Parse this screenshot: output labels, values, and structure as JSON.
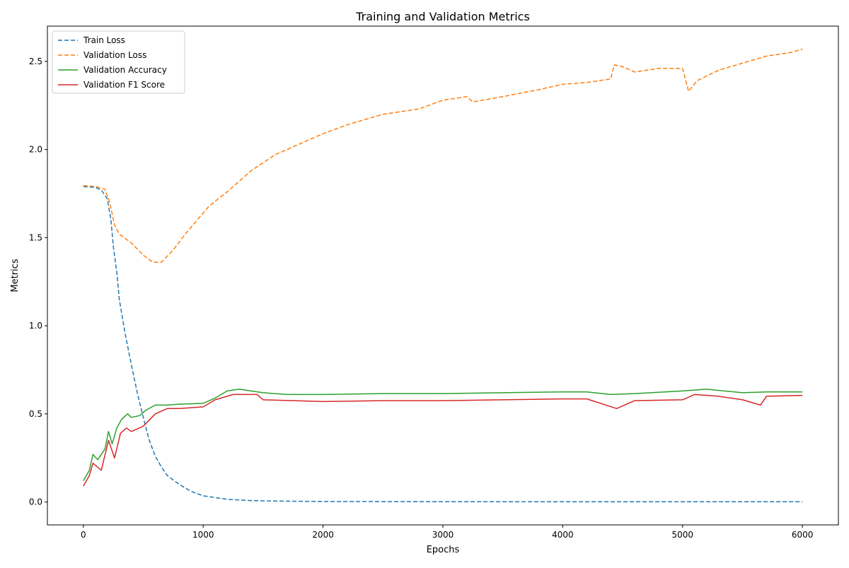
{
  "chart_data": {
    "type": "line",
    "title": "Training and Validation Metrics",
    "xlabel": "Epochs",
    "ylabel": "Metrics",
    "xlim": [
      -300,
      6300
    ],
    "ylim": [
      -0.13,
      2.7
    ],
    "x_ticks": [
      0,
      1000,
      2000,
      3000,
      4000,
      5000,
      6000
    ],
    "y_ticks": [
      0.0,
      0.5,
      1.0,
      1.5,
      2.0,
      2.5
    ],
    "x_tick_labels": [
      "0",
      "1000",
      "2000",
      "3000",
      "4000",
      "5000",
      "6000"
    ],
    "y_tick_labels": [
      "0.0",
      "0.5",
      "1.0",
      "1.5",
      "2.0",
      "2.5"
    ],
    "grid": false,
    "legend_position": "upper-left",
    "series": [
      {
        "name": "Train Loss",
        "color": "#1f77b4",
        "line_style": "dashed",
        "points": [
          [
            0,
            1.79
          ],
          [
            100,
            1.785
          ],
          [
            150,
            1.77
          ],
          [
            200,
            1.72
          ],
          [
            230,
            1.6
          ],
          [
            250,
            1.45
          ],
          [
            280,
            1.3
          ],
          [
            300,
            1.15
          ],
          [
            350,
            0.95
          ],
          [
            400,
            0.78
          ],
          [
            450,
            0.62
          ],
          [
            500,
            0.48
          ],
          [
            550,
            0.35
          ],
          [
            600,
            0.26
          ],
          [
            650,
            0.2
          ],
          [
            700,
            0.15
          ],
          [
            800,
            0.1
          ],
          [
            900,
            0.06
          ],
          [
            1000,
            0.035
          ],
          [
            1200,
            0.015
          ],
          [
            1400,
            0.008
          ],
          [
            1600,
            0.005
          ],
          [
            2000,
            0.003
          ],
          [
            3000,
            0.002
          ],
          [
            4000,
            0.001
          ],
          [
            5000,
            0.001
          ],
          [
            6000,
            0.001
          ]
        ]
      },
      {
        "name": "Validation Loss",
        "color": "#ff7f0e",
        "line_style": "dashed",
        "points": [
          [
            0,
            1.795
          ],
          [
            100,
            1.79
          ],
          [
            180,
            1.775
          ],
          [
            220,
            1.7
          ],
          [
            260,
            1.57
          ],
          [
            300,
            1.52
          ],
          [
            400,
            1.47
          ],
          [
            500,
            1.4
          ],
          [
            580,
            1.36
          ],
          [
            650,
            1.36
          ],
          [
            750,
            1.43
          ],
          [
            850,
            1.52
          ],
          [
            950,
            1.6
          ],
          [
            1050,
            1.68
          ],
          [
            1200,
            1.76
          ],
          [
            1400,
            1.88
          ],
          [
            1600,
            1.97
          ],
          [
            1800,
            2.03
          ],
          [
            2000,
            2.09
          ],
          [
            2200,
            2.14
          ],
          [
            2500,
            2.2
          ],
          [
            2800,
            2.23
          ],
          [
            3000,
            2.28
          ],
          [
            3200,
            2.3
          ],
          [
            3250,
            2.27
          ],
          [
            3500,
            2.3
          ],
          [
            3800,
            2.34
          ],
          [
            4000,
            2.37
          ],
          [
            4200,
            2.38
          ],
          [
            4400,
            2.4
          ],
          [
            4430,
            2.48
          ],
          [
            4500,
            2.47
          ],
          [
            4600,
            2.44
          ],
          [
            4800,
            2.46
          ],
          [
            5000,
            2.46
          ],
          [
            5050,
            2.33
          ],
          [
            5120,
            2.39
          ],
          [
            5300,
            2.45
          ],
          [
            5500,
            2.49
          ],
          [
            5700,
            2.53
          ],
          [
            5900,
            2.55
          ],
          [
            6000,
            2.57
          ]
        ]
      },
      {
        "name": "Validation Accuracy",
        "color": "#2ca02c",
        "line_style": "solid",
        "points": [
          [
            0,
            0.12
          ],
          [
            50,
            0.18
          ],
          [
            80,
            0.27
          ],
          [
            120,
            0.24
          ],
          [
            180,
            0.3
          ],
          [
            210,
            0.4
          ],
          [
            240,
            0.33
          ],
          [
            280,
            0.42
          ],
          [
            320,
            0.47
          ],
          [
            370,
            0.5
          ],
          [
            400,
            0.48
          ],
          [
            470,
            0.49
          ],
          [
            520,
            0.52
          ],
          [
            600,
            0.55
          ],
          [
            700,
            0.55
          ],
          [
            800,
            0.555
          ],
          [
            1000,
            0.56
          ],
          [
            1100,
            0.59
          ],
          [
            1200,
            0.63
          ],
          [
            1300,
            0.64
          ],
          [
            1500,
            0.62
          ],
          [
            1700,
            0.61
          ],
          [
            2000,
            0.61
          ],
          [
            2500,
            0.615
          ],
          [
            3000,
            0.615
          ],
          [
            3500,
            0.62
          ],
          [
            4000,
            0.625
          ],
          [
            4200,
            0.625
          ],
          [
            4400,
            0.61
          ],
          [
            4600,
            0.615
          ],
          [
            5000,
            0.63
          ],
          [
            5200,
            0.64
          ],
          [
            5500,
            0.62
          ],
          [
            5700,
            0.625
          ],
          [
            6000,
            0.625
          ]
        ]
      },
      {
        "name": "Validation F1 Score",
        "color": "#d62728",
        "line_style": "solid",
        "points": [
          [
            0,
            0.09
          ],
          [
            50,
            0.15
          ],
          [
            80,
            0.22
          ],
          [
            150,
            0.18
          ],
          [
            210,
            0.35
          ],
          [
            260,
            0.25
          ],
          [
            310,
            0.39
          ],
          [
            360,
            0.42
          ],
          [
            400,
            0.4
          ],
          [
            500,
            0.43
          ],
          [
            600,
            0.5
          ],
          [
            700,
            0.53
          ],
          [
            800,
            0.53
          ],
          [
            1000,
            0.54
          ],
          [
            1100,
            0.58
          ],
          [
            1250,
            0.61
          ],
          [
            1450,
            0.61
          ],
          [
            1500,
            0.58
          ],
          [
            2000,
            0.57
          ],
          [
            2500,
            0.575
          ],
          [
            3000,
            0.575
          ],
          [
            3500,
            0.58
          ],
          [
            4000,
            0.585
          ],
          [
            4200,
            0.585
          ],
          [
            4450,
            0.53
          ],
          [
            4600,
            0.575
          ],
          [
            5000,
            0.58
          ],
          [
            5100,
            0.61
          ],
          [
            5300,
            0.6
          ],
          [
            5500,
            0.58
          ],
          [
            5650,
            0.55
          ],
          [
            5700,
            0.6
          ],
          [
            6000,
            0.605
          ]
        ]
      }
    ]
  }
}
